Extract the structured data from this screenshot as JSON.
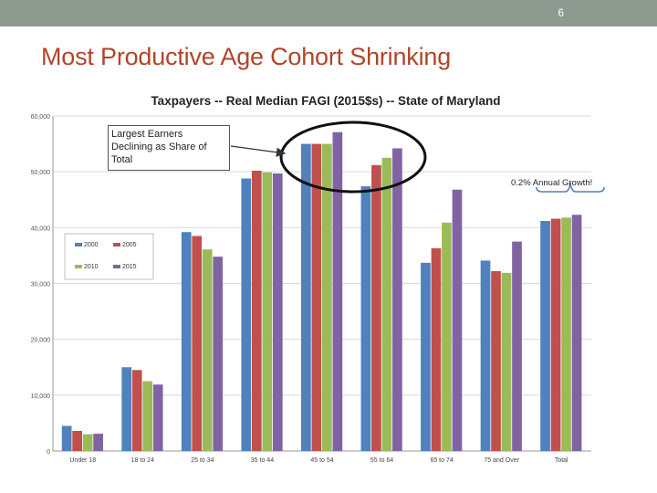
{
  "slide": {
    "number": "6",
    "title": "Most Productive Age Cohort Shrinking",
    "callout_text": "Largest Earners Declining as Share of Total",
    "growth_note": "0.2% Annual Growth!"
  },
  "colors": {
    "topbar": "#8c9a8f",
    "title": "#b0452a",
    "s2000": "#4f81bd",
    "s2005": "#c0504d",
    "s2010": "#9bbb59",
    "s2015": "#8064a2"
  },
  "chart_data": {
    "type": "bar",
    "title": "Taxpayers -- Real Median FAGI (2015$s) -- State of Maryland",
    "xlabel": "",
    "ylabel": "",
    "ylim": [
      0,
      60000
    ],
    "yticks": [
      "0",
      "10,000",
      "20,000",
      "30,000",
      "40,000",
      "50,000",
      "60,000"
    ],
    "categories": [
      "Under 18",
      "18 to 24",
      "25 to 34",
      "35 to 44",
      "45 to 54",
      "55 to 64",
      "65 to 74",
      "75 and Over",
      "Total"
    ],
    "series": [
      {
        "name": "2000",
        "color": "#4f81bd",
        "values": [
          4500,
          15000,
          39200,
          48800,
          55000,
          47400,
          33700,
          34100,
          41200
        ]
      },
      {
        "name": "2005",
        "color": "#c0504d",
        "values": [
          3600,
          14500,
          38500,
          50200,
          55000,
          51200,
          36300,
          32200,
          41600
        ]
      },
      {
        "name": "2010",
        "color": "#9bbb59",
        "values": [
          3000,
          12500,
          36100,
          49900,
          55000,
          52500,
          40900,
          31900,
          41800
        ]
      },
      {
        "name": "2015",
        "color": "#8064a2",
        "values": [
          3100,
          11900,
          34800,
          49700,
          57100,
          54200,
          46800,
          37500,
          42300
        ]
      }
    ],
    "legend": [
      {
        "name": "2000",
        "color": "#4f81bd"
      },
      {
        "name": "2005",
        "color": "#c0504d"
      },
      {
        "name": "2010",
        "color": "#9bbb59"
      },
      {
        "name": "2015",
        "color": "#8064a2"
      }
    ]
  }
}
